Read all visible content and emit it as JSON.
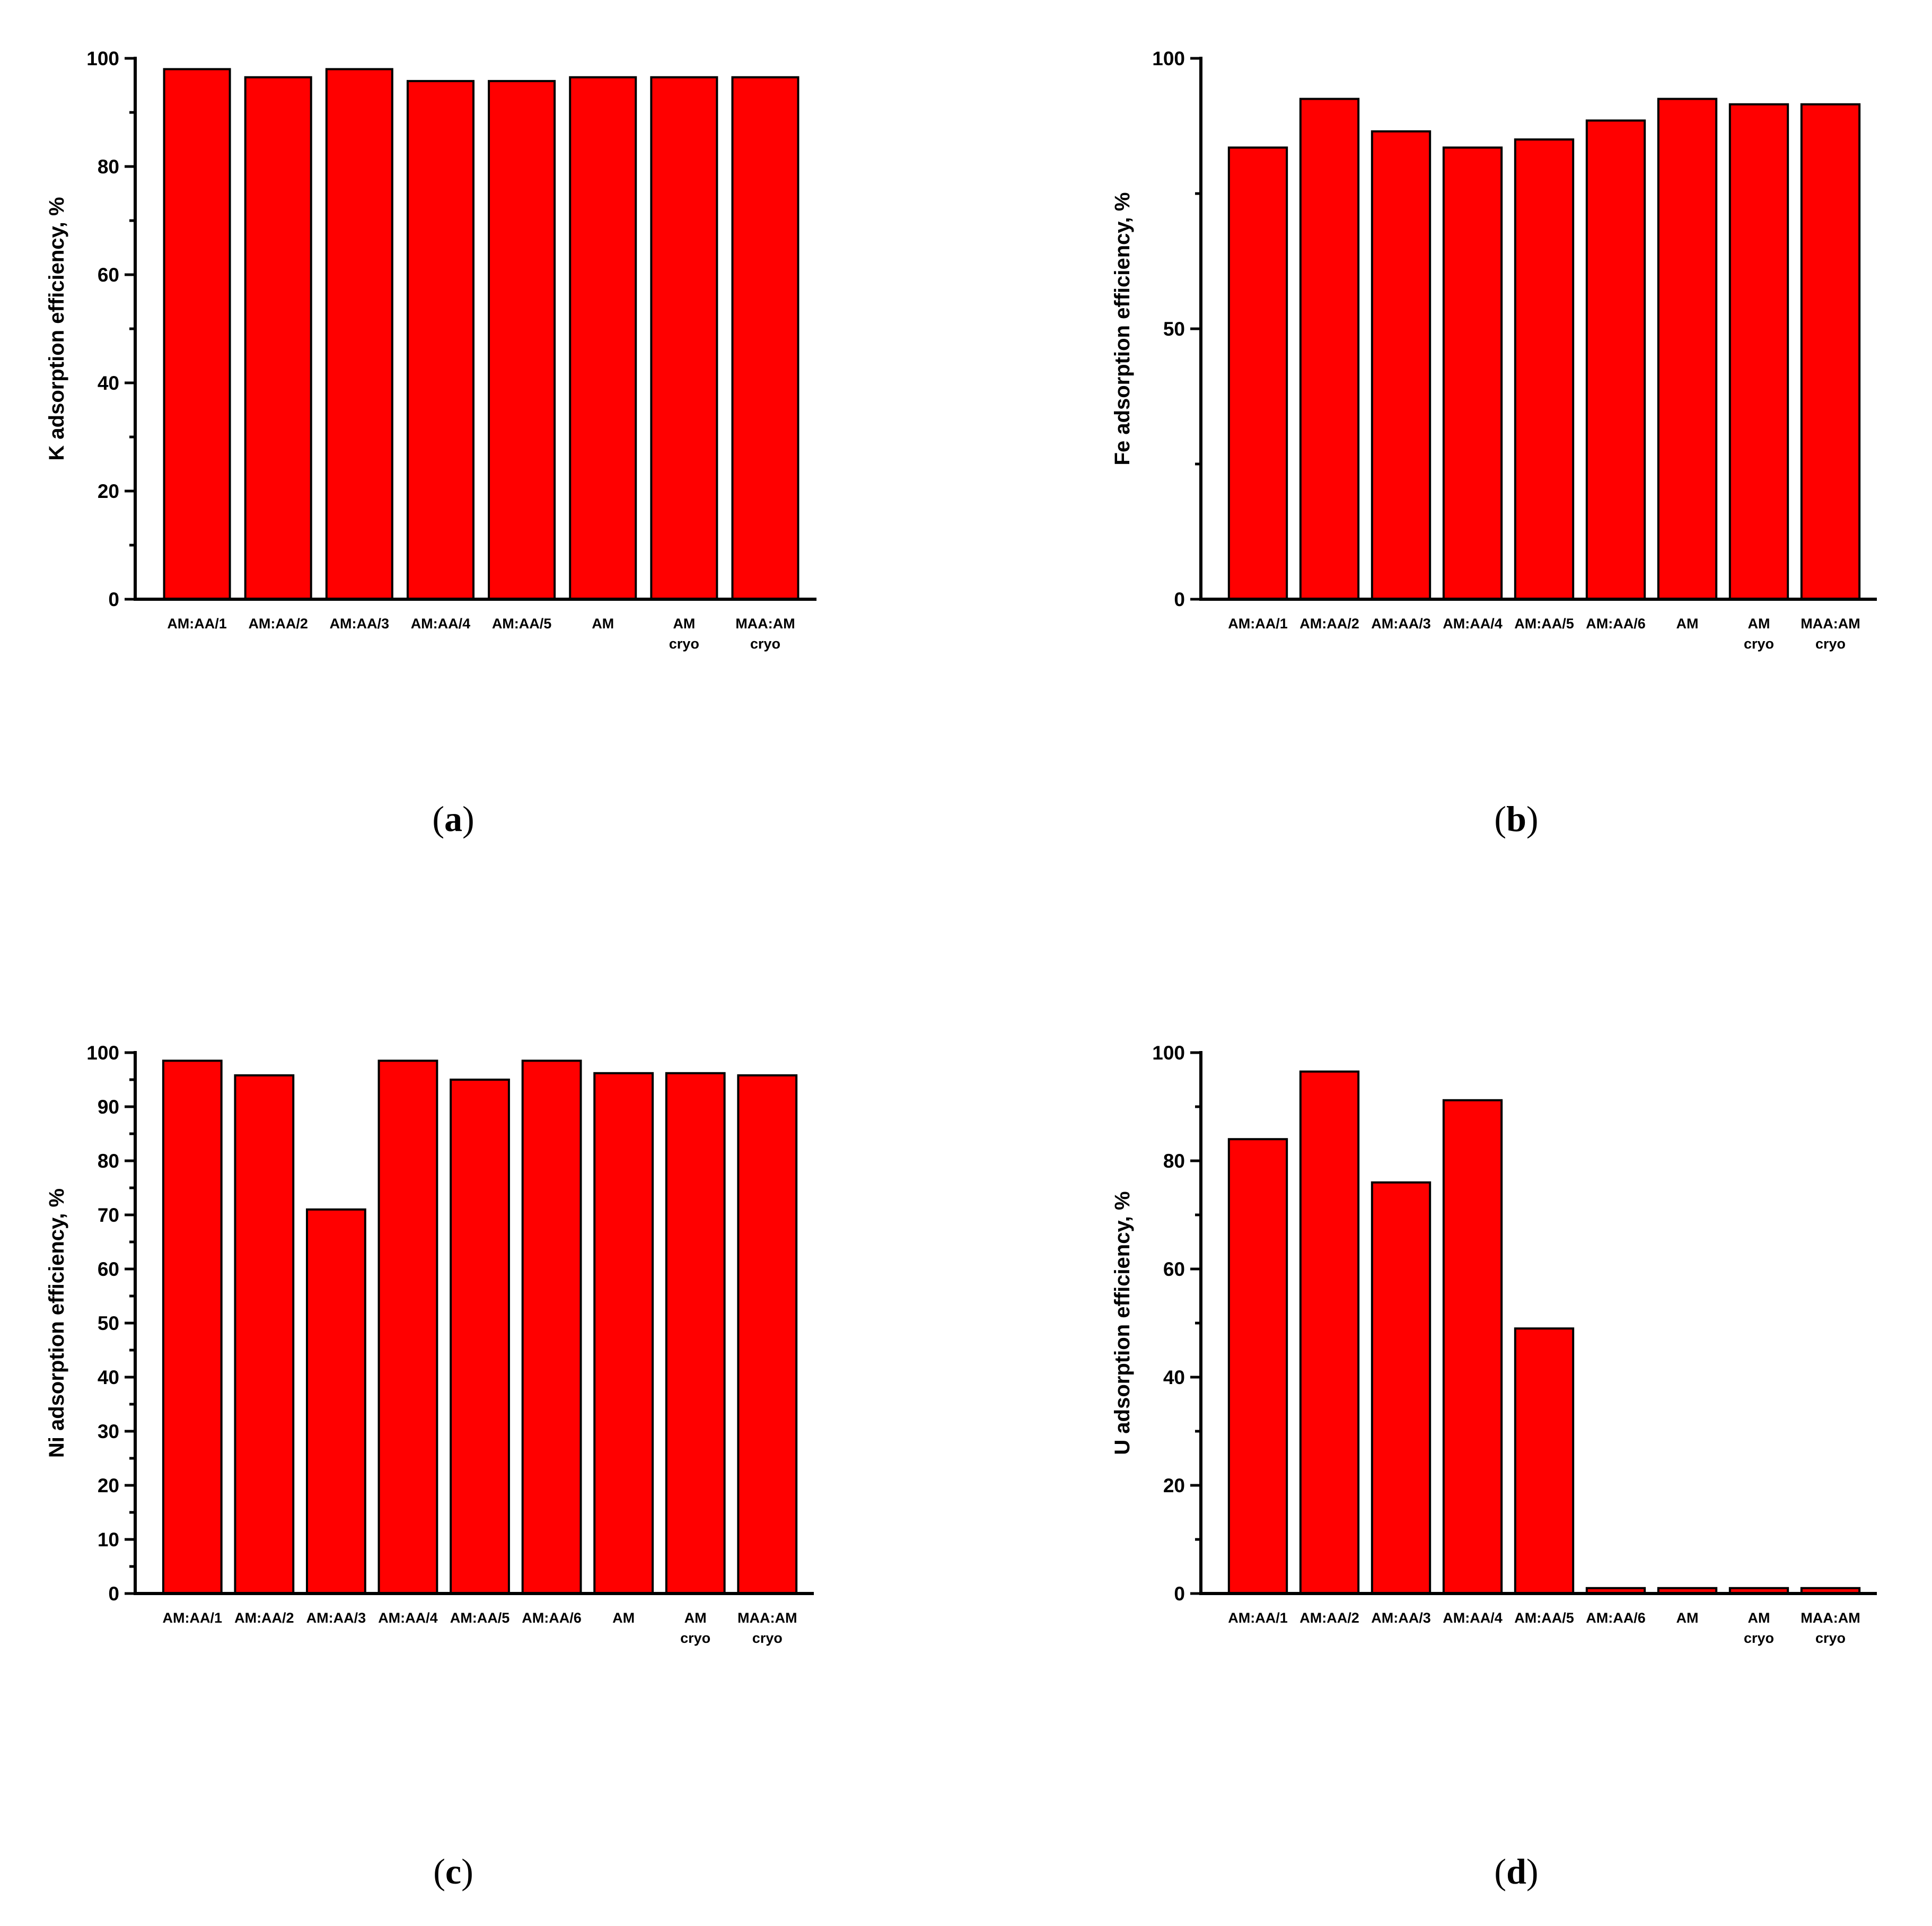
{
  "colors": {
    "bar": "#ff0000",
    "axis": "#000000"
  },
  "chart_data": [
    {
      "type": "bar",
      "panel_label": "a",
      "ylabel": "K adsorption efficiency, %",
      "ylim": [
        0,
        100
      ],
      "yticks": [
        0,
        20,
        40,
        60,
        80,
        100
      ],
      "categories": [
        "AM:AA/1",
        "AM:AA/2",
        "AM:AA/3",
        "AM:AA/4",
        "AM:AA/5",
        "AM",
        "AM\ncryo",
        "MAA:AM\ncryo"
      ],
      "values": [
        98,
        96.5,
        98,
        95.8,
        95.8,
        96.5,
        96.5,
        96.5
      ]
    },
    {
      "type": "bar",
      "panel_label": "b",
      "ylabel": "Fe adsorption efficiency, %",
      "ylim": [
        0,
        100
      ],
      "yticks": [
        0,
        50,
        100
      ],
      "categories": [
        "AM:AA/1",
        "AM:AA/2",
        "AM:AA/3",
        "AM:AA/4",
        "AM:AA/5",
        "AM:AA/6",
        "AM",
        "AM\ncryo",
        "MAA:AM\ncryo"
      ],
      "values": [
        83.5,
        92.5,
        86.5,
        83.5,
        85,
        88.5,
        92.5,
        91.5,
        91.5
      ]
    },
    {
      "type": "bar",
      "panel_label": "c",
      "ylabel": "Ni adsorption efficiency, %",
      "ylim": [
        0,
        100
      ],
      "yticks": [
        0,
        10,
        20,
        30,
        40,
        50,
        60,
        70,
        80,
        90,
        100
      ],
      "categories": [
        "AM:AA/1",
        "AM:AA/2",
        "AM:AA/3",
        "AM:AA/4",
        "AM:AA/5",
        "AM:AA/6",
        "AM",
        "AM\ncryo",
        "MAA:AM\ncryo"
      ],
      "values": [
        98.5,
        95.8,
        71,
        98.5,
        95,
        98.5,
        96.2,
        96.2,
        95.8
      ]
    },
    {
      "type": "bar",
      "panel_label": "d",
      "ylabel": "U adsorption efficiency, %",
      "ylim": [
        0,
        100
      ],
      "yticks": [
        0,
        20,
        40,
        60,
        80,
        100
      ],
      "categories": [
        "AM:AA/1",
        "AM:AA/2",
        "AM:AA/3",
        "AM:AA/4",
        "AM:AA/5",
        "AM:AA/6",
        "AM",
        "AM\ncryo",
        "MAA:AM\ncryo"
      ],
      "values": [
        84,
        96.5,
        76,
        91.2,
        49,
        1,
        1,
        1,
        1
      ]
    }
  ]
}
